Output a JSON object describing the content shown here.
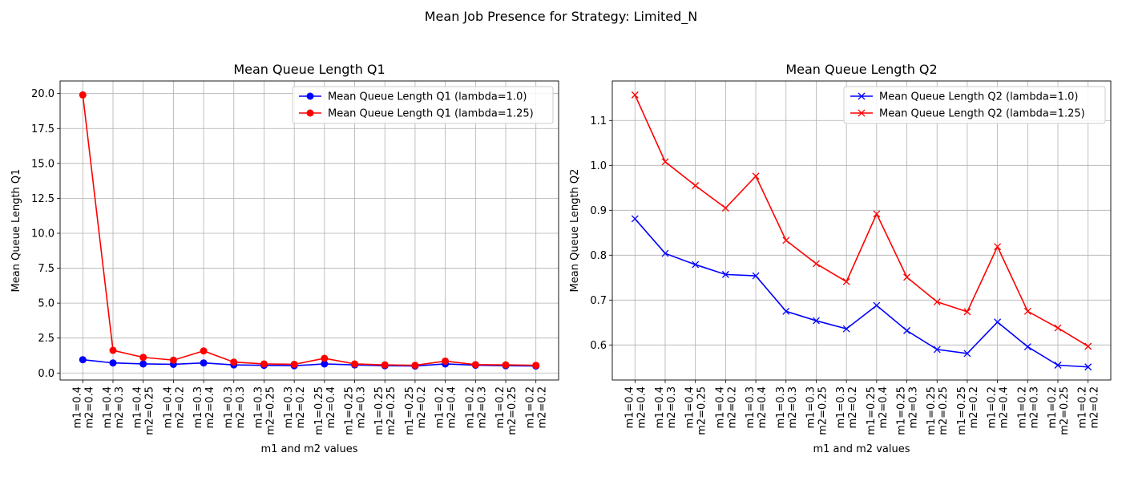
{
  "suptitle": "Mean Job Presence for Strategy: Limited_N",
  "chart_data": [
    {
      "type": "line",
      "title": "Mean Queue Length Q1",
      "xlabel": "m1 and m2 values",
      "ylabel": "Mean Queue Length Q1",
      "categories": [
        [
          "m1=0.4",
          "m2=0.4"
        ],
        [
          "m1=0.4",
          "m2=0.3"
        ],
        [
          "m1=0.4",
          "m2=0.25"
        ],
        [
          "m1=0.4",
          "m2=0.2"
        ],
        [
          "m1=0.3",
          "m2=0.4"
        ],
        [
          "m1=0.3",
          "m2=0.3"
        ],
        [
          "m1=0.3",
          "m2=0.25"
        ],
        [
          "m1=0.3",
          "m2=0.2"
        ],
        [
          "m1=0.25",
          "m2=0.4"
        ],
        [
          "m1=0.25",
          "m2=0.3"
        ],
        [
          "m1=0.25",
          "m2=0.25"
        ],
        [
          "m1=0.25",
          "m2=0.2"
        ],
        [
          "m1=0.2",
          "m2=0.4"
        ],
        [
          "m1=0.2",
          "m2=0.3"
        ],
        [
          "m1=0.2",
          "m2=0.25"
        ],
        [
          "m1=0.2",
          "m2=0.2"
        ]
      ],
      "ylim": [
        -0.5,
        20.9
      ],
      "yticks": [
        0.0,
        2.5,
        5.0,
        7.5,
        10.0,
        12.5,
        15.0,
        17.5,
        20.0
      ],
      "ytick_labels": [
        "0.0",
        "2.5",
        "5.0",
        "7.5",
        "10.0",
        "12.5",
        "15.0",
        "17.5",
        "20.0"
      ],
      "grid": true,
      "legend_position": "top-right",
      "marker": "circle",
      "series": [
        {
          "name": "Mean Queue Length Q1 (lambda=1.0)",
          "color": "#0000ff",
          "values": [
            0.95,
            0.72,
            0.65,
            0.62,
            0.72,
            0.58,
            0.55,
            0.52,
            0.65,
            0.58,
            0.52,
            0.5,
            0.65,
            0.56,
            0.52,
            0.5
          ]
        },
        {
          "name": "Mean Queue Length Q1 (lambda=1.25)",
          "color": "#ff0000",
          "values": [
            19.9,
            1.62,
            1.12,
            0.92,
            1.58,
            0.78,
            0.65,
            0.62,
            1.05,
            0.65,
            0.58,
            0.55,
            0.85,
            0.6,
            0.58,
            0.55
          ]
        }
      ]
    },
    {
      "type": "line",
      "title": "Mean Queue Length Q2",
      "xlabel": "m1 and m2 values",
      "ylabel": "Mean Queue Length Q2",
      "categories": [
        [
          "m1=0.4",
          "m2=0.4"
        ],
        [
          "m1=0.4",
          "m2=0.3"
        ],
        [
          "m1=0.4",
          "m2=0.25"
        ],
        [
          "m1=0.4",
          "m2=0.2"
        ],
        [
          "m1=0.3",
          "m2=0.4"
        ],
        [
          "m1=0.3",
          "m2=0.3"
        ],
        [
          "m1=0.3",
          "m2=0.25"
        ],
        [
          "m1=0.3",
          "m2=0.2"
        ],
        [
          "m1=0.25",
          "m2=0.4"
        ],
        [
          "m1=0.25",
          "m2=0.3"
        ],
        [
          "m1=0.25",
          "m2=0.25"
        ],
        [
          "m1=0.25",
          "m2=0.2"
        ],
        [
          "m1=0.2",
          "m2=0.4"
        ],
        [
          "m1=0.2",
          "m2=0.3"
        ],
        [
          "m1=0.2",
          "m2=0.25"
        ],
        [
          "m1=0.2",
          "m2=0.2"
        ]
      ],
      "ylim": [
        0.522,
        1.188
      ],
      "yticks": [
        0.6,
        0.7,
        0.8,
        0.9,
        1.0,
        1.1
      ],
      "ytick_labels": [
        "0.6",
        "0.7",
        "0.8",
        "0.9",
        "1.0",
        "1.1"
      ],
      "grid": true,
      "legend_position": "top-right",
      "marker": "x",
      "series": [
        {
          "name": "Mean Queue Length Q2 (lambda=1.0)",
          "color": "#0000ff",
          "values": [
            0.881,
            0.804,
            0.779,
            0.757,
            0.754,
            0.675,
            0.654,
            0.636,
            0.688,
            0.632,
            0.59,
            0.581,
            0.651,
            0.596,
            0.555,
            0.551
          ]
        },
        {
          "name": "Mean Queue Length Q2 (lambda=1.25)",
          "color": "#ff0000",
          "values": [
            1.157,
            1.008,
            0.955,
            0.905,
            0.976,
            0.833,
            0.781,
            0.741,
            0.892,
            0.751,
            0.696,
            0.674,
            0.819,
            0.675,
            0.638,
            0.597
          ]
        }
      ]
    }
  ]
}
